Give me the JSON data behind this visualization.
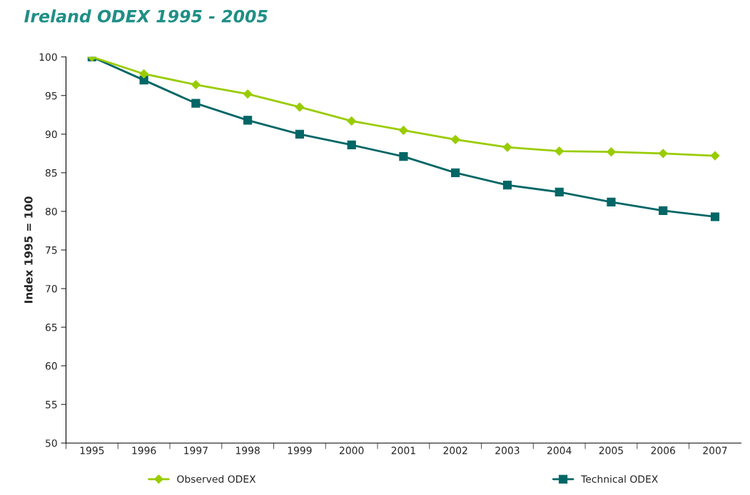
{
  "chart_data": {
    "type": "line",
    "title": "Ireland ODEX 1995 - 2005",
    "ylabel": "Index 1995 = 100",
    "categories": [
      "1995",
      "1996",
      "1997",
      "1998",
      "1999",
      "2000",
      "2001",
      "2002",
      "2003",
      "2004",
      "2005",
      "2006",
      "2007"
    ],
    "series": [
      {
        "name": "Observed ODEX",
        "color": "#99cc00",
        "marker": "diamond",
        "values": [
          100,
          97.8,
          96.4,
          95.2,
          93.5,
          91.7,
          90.5,
          89.3,
          88.3,
          87.8,
          87.7,
          87.5,
          87.2
        ]
      },
      {
        "name": "Technical ODEX",
        "color": "#006666",
        "marker": "square",
        "values": [
          100,
          97.0,
          94.0,
          91.8,
          90.0,
          88.6,
          87.1,
          85.0,
          83.4,
          82.5,
          81.2,
          80.1,
          79.3
        ]
      }
    ],
    "ylim": [
      50,
      100
    ],
    "yticks": [
      50,
      55,
      60,
      65,
      70,
      75,
      80,
      85,
      90,
      95,
      100
    ],
    "grid": false,
    "legend": "bottom",
    "line_style": "solid"
  }
}
